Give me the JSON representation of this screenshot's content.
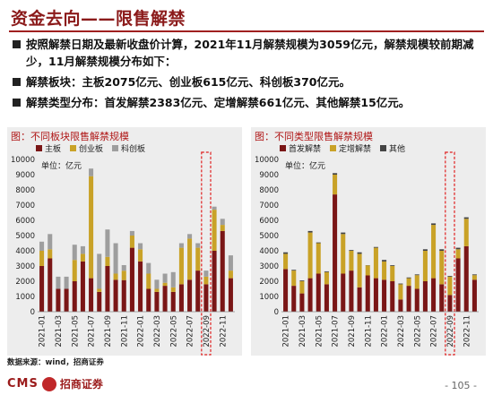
{
  "header": {
    "title": "资金去向——限售解禁"
  },
  "bullets": [
    "按照解禁日期及最新收盘价计算，2021年11月解禁规模为3059亿元，解禁规模较前期减少，11月解禁规模分布如下：",
    "解禁板块：主板2075亿元、创业板615亿元、科创板370亿元。",
    "解禁类型分布：首发解禁2383亿元、定增解禁661亿元、其他解禁15亿元。"
  ],
  "colors": {
    "series1": "#7a1616",
    "series2": "#c9a227",
    "series3": "#9e9e9e",
    "highlight": "#e02020",
    "panel_bg": "#ededed"
  },
  "chart_data": [
    {
      "type": "bar",
      "stacked": true,
      "title": "图：不同板块限售解禁规模",
      "unit_label": "单位：亿元",
      "ylim": [
        0,
        10000
      ],
      "yticks": [
        "0",
        "1000",
        "2000",
        "3000",
        "4000",
        "5000",
        "6000",
        "7000",
        "8000",
        "9000",
        "10000"
      ],
      "xtick_labels": [
        "2021-01",
        "2021-03",
        "2021-05",
        "2021-07",
        "2021-09",
        "2021-11",
        "2022-01",
        "2022-03",
        "2022-05",
        "2022-07",
        "2022-09",
        "2022-11"
      ],
      "highlight_category_index": 20,
      "series": [
        {
          "name": "主板",
          "values": [
            3000,
            3500,
            1500,
            1500,
            2000,
            3300,
            2200,
            1300,
            3000,
            2100,
            2075,
            4200,
            3300,
            1500,
            1300,
            1700,
            1300,
            1800,
            2100,
            2700,
            1800,
            4000,
            5300,
            2200
          ]
        },
        {
          "name": "创业板",
          "values": [
            1000,
            600,
            0,
            0,
            1400,
            500,
            6700,
            200,
            600,
            400,
            615,
            800,
            800,
            1000,
            200,
            200,
            300,
            2400,
            2700,
            1500,
            500,
            2700,
            400,
            500
          ]
        },
        {
          "name": "科创板",
          "values": [
            600,
            1000,
            800,
            800,
            1000,
            500,
            500,
            2300,
            1800,
            2000,
            370,
            300,
            400,
            700,
            600,
            600,
            1000,
            300,
            300,
            300,
            400,
            200,
            400,
            1000
          ]
        }
      ]
    },
    {
      "type": "bar",
      "stacked": true,
      "title": "图：不同类型限售解禁规模",
      "unit_label": "单位：亿元",
      "ylim": [
        0,
        10000
      ],
      "yticks": [
        "0",
        "1000",
        "2000",
        "3000",
        "4000",
        "5000",
        "6000",
        "7000",
        "8000",
        "9000",
        "10000"
      ],
      "xtick_labels": [
        "2021-01",
        "2021-03",
        "2021-05",
        "2021-07",
        "2021-09",
        "2021-11",
        "2022-01",
        "2022-03",
        "2022-05",
        "2022-07",
        "2022-09",
        "2022-11"
      ],
      "highlight_category_index": 20,
      "series": [
        {
          "name": "首发解禁",
          "values": [
            2800,
            1700,
            1200,
            2200,
            2500,
            1800,
            7700,
            2500,
            2700,
            1600,
            2383,
            2200,
            2100,
            2000,
            800,
            1700,
            1500,
            2000,
            2200,
            1800,
            1100,
            3500,
            4300,
            2100
          ]
        },
        {
          "name": "定增解禁",
          "values": [
            1000,
            1000,
            800,
            3000,
            2000,
            800,
            1300,
            2600,
            1300,
            2200,
            661,
            2000,
            1200,
            1000,
            1000,
            500,
            900,
            2000,
            3500,
            2200,
            1200,
            600,
            1800,
            300
          ]
        },
        {
          "name": "其他",
          "values": [
            100,
            50,
            50,
            100,
            50,
            50,
            100,
            100,
            50,
            100,
            15,
            50,
            100,
            50,
            50,
            50,
            50,
            100,
            100,
            100,
            50,
            100,
            100,
            50
          ]
        }
      ]
    }
  ],
  "footer": {
    "source": "数据来源：wind，招商证券",
    "logo_text": "CMS",
    "logo_name": "招商证券",
    "page_number": "- 105 -"
  }
}
